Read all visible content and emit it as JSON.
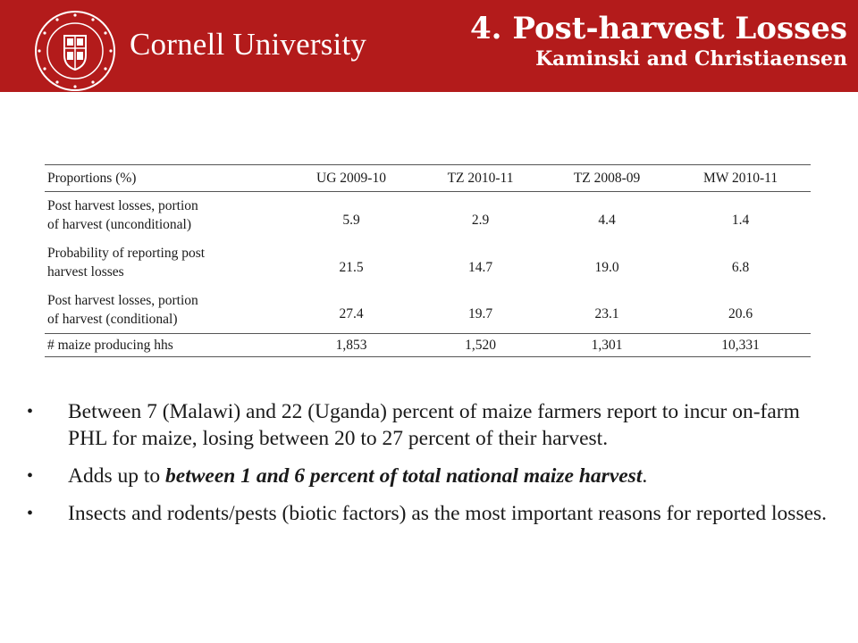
{
  "header": {
    "brand": "Cornell University",
    "seal_text": "CORNELL UNIVERSITY FOUNDED A.D. 1865",
    "title": "4. Post-harvest Losses",
    "subtitle": "Kaminski and Christiaensen",
    "bg_color": "#b31b1b"
  },
  "table": {
    "headers": [
      "Proportions (%)",
      "UG 2009-10",
      "TZ 2010-11",
      "TZ 2008-09",
      "MW 2010-11"
    ],
    "rows": [
      {
        "label_line1": "Post harvest losses, portion",
        "label_line2": "of harvest (unconditional)",
        "values": [
          "5.9",
          "2.9",
          "4.4",
          "1.4"
        ]
      },
      {
        "label_line1": "Probability of reporting post",
        "label_line2": "harvest losses",
        "values": [
          "21.5",
          "14.7",
          "19.0",
          "6.8"
        ]
      },
      {
        "label_line1": "Post harvest losses, portion",
        "label_line2": "of harvest (conditional)",
        "values": [
          "27.4",
          "19.7",
          "23.1",
          "20.6"
        ]
      }
    ],
    "last_row": {
      "label": "# maize producing hhs",
      "values": [
        "1,853",
        "1,520",
        "1,301",
        "10,331"
      ]
    }
  },
  "bullets": {
    "b1": "Between 7 (Malawi) and 22 (Uganda) percent of maize farmers report to incur on-farm PHL for maize, losing between 20 to 27 percent of their harvest.",
    "b2_pre": "Adds up to ",
    "b2_emph": "between 1 and 6 percent of total national maize harvest",
    "b2_post": ".",
    "b3": "Insects and rodents/pests (biotic factors) as the most important reasons for reported losses.",
    "marker": "•"
  }
}
